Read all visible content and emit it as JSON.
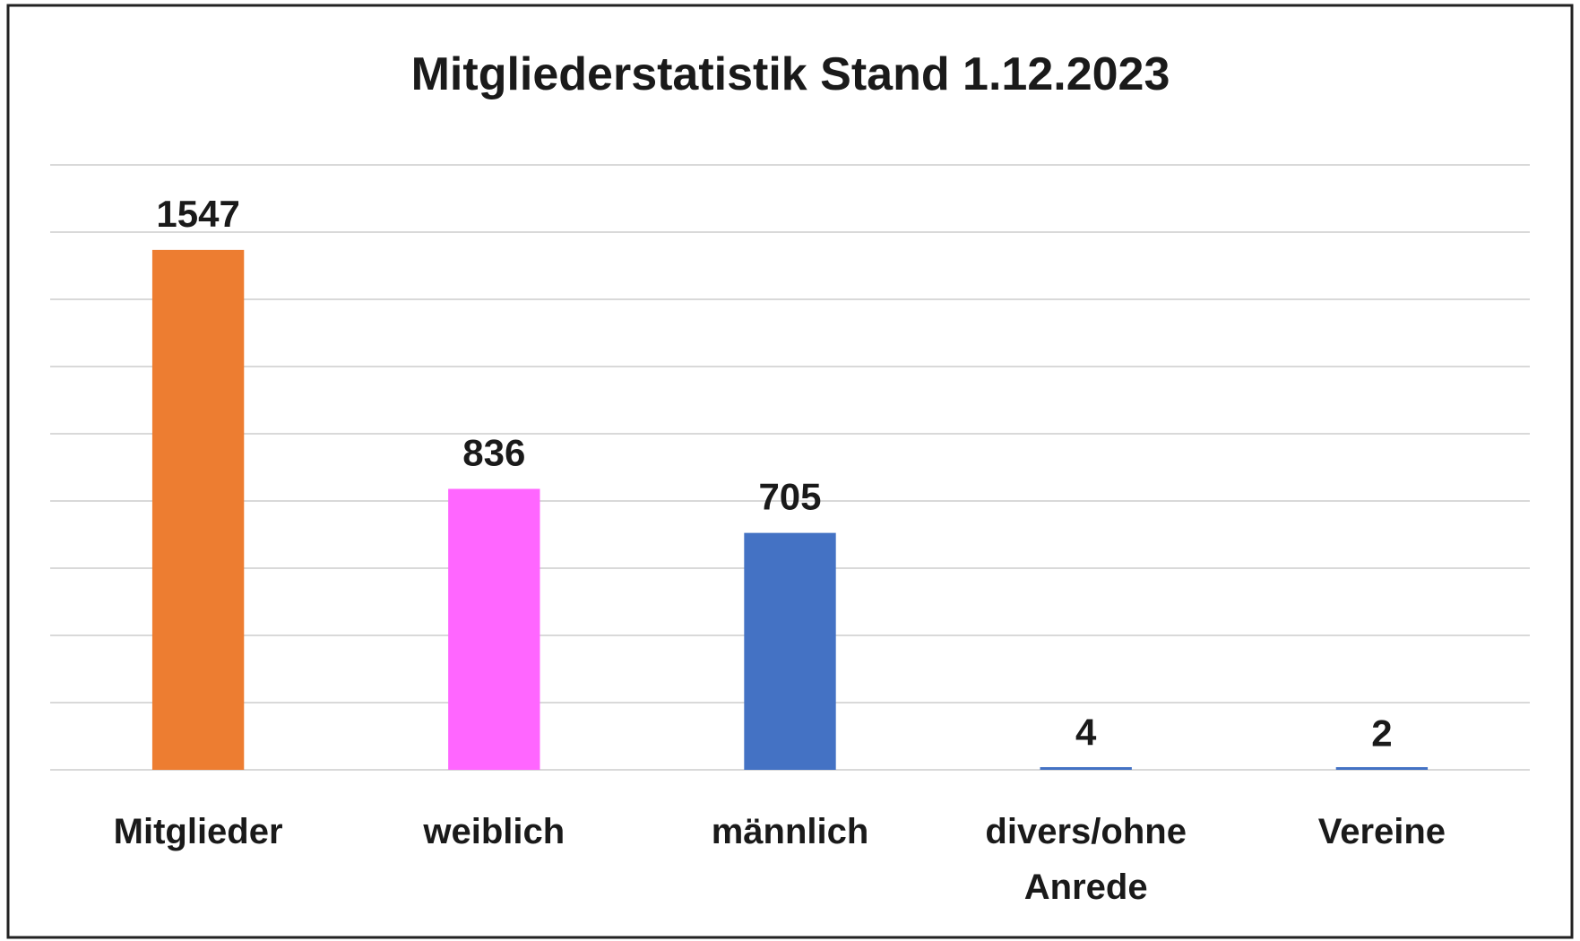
{
  "chart_data": {
    "type": "bar",
    "title": "Mitgliederstatistik Stand 1.12.2023",
    "categories": [
      "Mitglieder",
      "weiblich",
      "männlich",
      "divers/ohne Anrede",
      "Vereine"
    ],
    "values": [
      1547,
      836,
      705,
      4,
      2
    ],
    "colors": [
      "#ed7d31",
      "#ff66ff",
      "#4472c4",
      "#4472c4",
      "#4472c4"
    ],
    "ylim": [
      0,
      1800
    ],
    "yticks": [
      0,
      200,
      400,
      600,
      800,
      1000,
      1200,
      1400,
      1600,
      1800
    ],
    "grid": true
  }
}
